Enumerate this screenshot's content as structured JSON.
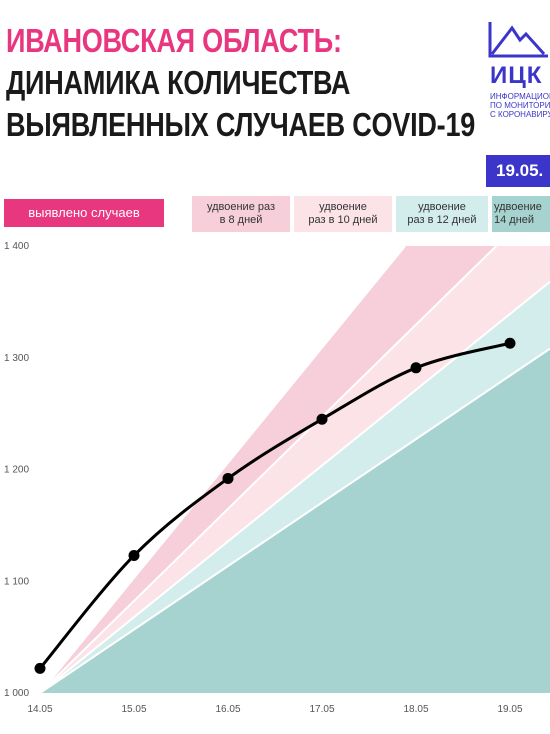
{
  "header": {
    "title_line1": "ИВАНОВСКАЯ ОБЛАСТЬ:",
    "title_line2": "ДИНАМИКА КОЛИЧЕСТВА",
    "title_line3": "ВЫЯВЛЕННЫХ СЛУЧАЕВ COVID-19"
  },
  "logo": {
    "abbr": "ИЦК",
    "sub1": "ИНФОРМАЦИОН",
    "sub2": "ПО МОНИТОРИН",
    "sub3": "С КОРОНАВИРУ"
  },
  "date_badge": "19.05.",
  "legend": {
    "main": "выявлено случаев",
    "d8_line1": "удвоение раз",
    "d8_line2": "в 8 дней",
    "d10_line1": "удвоение",
    "d10_line2": "раз в 10 дней",
    "d12_line1": "удвоение",
    "d12_line2": "раз в 12 дней",
    "d14_line1": "удвоение",
    "d14_line2": "14 дней"
  },
  "colors": {
    "accent_pink": "#e8367f",
    "brand_blue": "#3b35c9",
    "band_8": "#f6cfda",
    "band_10": "#fbe3e8",
    "band_12": "#d3ecec",
    "band_14": "#a6d3d0"
  },
  "chart_data": {
    "type": "line",
    "categories": [
      "14.05",
      "15.05",
      "16.05",
      "17.05",
      "18.05",
      "19.05"
    ],
    "series": [
      {
        "name": "выявлено случаев",
        "values": [
          1022,
          1123,
          1192,
          1245,
          1291,
          1313
        ]
      }
    ],
    "doubling_bands": [
      {
        "name": "удвоение раз в 8 дней",
        "days": 8
      },
      {
        "name": "удвоение раз в 10 дней",
        "days": 10
      },
      {
        "name": "удвоение раз в 12 дней",
        "days": 12
      },
      {
        "name": "удвоение 14 дней",
        "days": 14
      }
    ],
    "band_base": 1000,
    "y_ticks": [
      "1 000",
      "1 100",
      "1 200",
      "1 300",
      "1 400"
    ],
    "y_tick_values": [
      1000,
      1100,
      1200,
      1300,
      1400
    ],
    "ylim": [
      1000,
      1400
    ],
    "grid": false,
    "legend_position": "top"
  }
}
